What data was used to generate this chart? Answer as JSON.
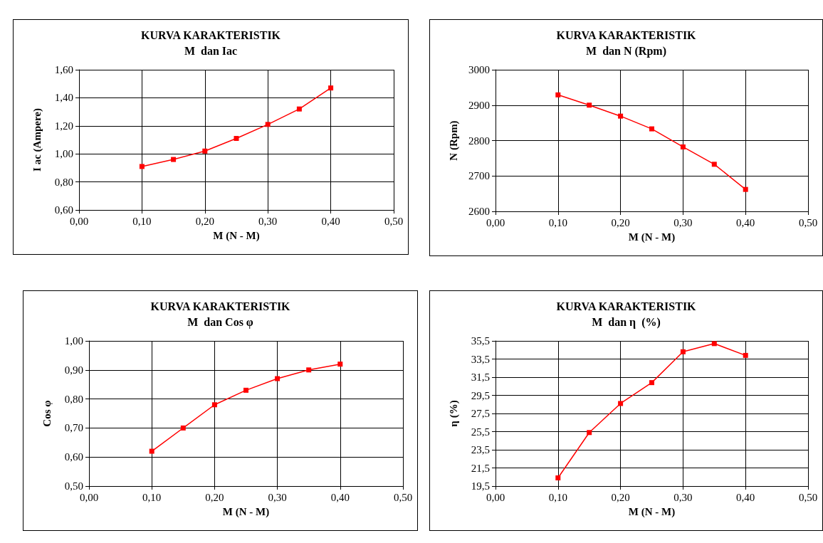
{
  "chart_data": [
    {
      "type": "line",
      "title": "KURVA KARAKTERISTIK",
      "subtitle": "M  dan Iac",
      "xlabel": "M (N - M)",
      "ylabel": "I ac (Ampere)",
      "x": [
        0.1,
        0.15,
        0.2,
        0.25,
        0.3,
        0.35,
        0.4
      ],
      "series": [
        {
          "color": "#ff0000",
          "values": [
            0.91,
            0.96,
            1.02,
            1.11,
            1.21,
            1.32,
            1.47
          ]
        }
      ],
      "xlim": [
        0,
        0.5
      ],
      "xticks": [
        {
          "value": 0,
          "label": "0,00"
        },
        {
          "value": 0.1,
          "label": "0,10"
        },
        {
          "value": 0.2,
          "label": "0,20"
        },
        {
          "value": 0.3,
          "label": "0,30"
        },
        {
          "value": 0.4,
          "label": "0,40"
        },
        {
          "value": 0.5,
          "label": "0,50"
        }
      ],
      "ylim": [
        0.6,
        1.6
      ],
      "yticks": [
        {
          "value": 0.6,
          "label": "0,60"
        },
        {
          "value": 0.8,
          "label": "0,80"
        },
        {
          "value": 1.0,
          "label": "1,00"
        },
        {
          "value": 1.2,
          "label": "1,20"
        },
        {
          "value": 1.4,
          "label": "1,40"
        },
        {
          "value": 1.6,
          "label": "1,60"
        }
      ],
      "grid": true,
      "marker": "square",
      "line_style": "solid"
    },
    {
      "type": "line",
      "title": "KURVA KARAKTERISTIK",
      "subtitle": "M  dan N (Rpm)",
      "xlabel": "M (N - M)",
      "ylabel": "N (Rpm)",
      "x": [
        0.1,
        0.15,
        0.2,
        0.25,
        0.3,
        0.35,
        0.4
      ],
      "series": [
        {
          "color": "#ff0000",
          "values": [
            2929,
            2900,
            2869,
            2833,
            2782,
            2733,
            2662
          ]
        }
      ],
      "xlim": [
        0,
        0.5
      ],
      "xticks": [
        {
          "value": 0,
          "label": "0,00"
        },
        {
          "value": 0.1,
          "label": "0,10"
        },
        {
          "value": 0.2,
          "label": "0,20"
        },
        {
          "value": 0.3,
          "label": "0,30"
        },
        {
          "value": 0.4,
          "label": "0,40"
        },
        {
          "value": 0.5,
          "label": "0,50"
        }
      ],
      "ylim": [
        2600,
        3000
      ],
      "yticks": [
        2600,
        2700,
        2800,
        2900,
        3000
      ],
      "grid": true,
      "marker": "square",
      "line_style": "solid"
    },
    {
      "type": "line",
      "title": "KURVA KARAKTERISTIK",
      "subtitle": "M  dan Cos φ",
      "xlabel": "M (N - M)",
      "ylabel": "Cos φ",
      "x": [
        0.1,
        0.15,
        0.2,
        0.25,
        0.3,
        0.35,
        0.4
      ],
      "series": [
        {
          "color": "#ff0000",
          "values": [
            0.62,
            0.7,
            0.78,
            0.83,
            0.87,
            0.9,
            0.92
          ]
        }
      ],
      "xlim": [
        0,
        0.5
      ],
      "xticks": [
        {
          "value": 0,
          "label": "0,00"
        },
        {
          "value": 0.1,
          "label": "0,10"
        },
        {
          "value": 0.2,
          "label": "0,20"
        },
        {
          "value": 0.3,
          "label": "0,30"
        },
        {
          "value": 0.4,
          "label": "0,40"
        },
        {
          "value": 0.5,
          "label": "0,50"
        }
      ],
      "ylim": [
        0.5,
        1.0
      ],
      "yticks": [
        {
          "value": 0.5,
          "label": "0,50"
        },
        {
          "value": 0.6,
          "label": "0,60"
        },
        {
          "value": 0.7,
          "label": "0,70"
        },
        {
          "value": 0.8,
          "label": "0,80"
        },
        {
          "value": 0.9,
          "label": "0,90"
        },
        {
          "value": 1.0,
          "label": "1,00"
        }
      ],
      "grid": true,
      "marker": "square",
      "line_style": "solid"
    },
    {
      "type": "line",
      "title": "KURVA KARAKTERISTIK",
      "subtitle": "M  dan η  (%)",
      "xlabel": "M (N - M)",
      "ylabel": "η (%)",
      "x": [
        0.1,
        0.15,
        0.2,
        0.25,
        0.3,
        0.35,
        0.4
      ],
      "series": [
        {
          "color": "#ff0000",
          "values": [
            20.4,
            25.4,
            28.6,
            30.9,
            34.3,
            35.2,
            33.9
          ]
        }
      ],
      "xlim": [
        0,
        0.5
      ],
      "xticks": [
        {
          "value": 0,
          "label": "0,00"
        },
        {
          "value": 0.1,
          "label": "0,10"
        },
        {
          "value": 0.2,
          "label": "0,20"
        },
        {
          "value": 0.3,
          "label": "0,30"
        },
        {
          "value": 0.4,
          "label": "0,40"
        },
        {
          "value": 0.5,
          "label": "0,50"
        }
      ],
      "ylim": [
        19.5,
        35.5
      ],
      "yticks": [
        {
          "value": 19.5,
          "label": "19,5"
        },
        {
          "value": 21.5,
          "label": "21,5"
        },
        {
          "value": 23.5,
          "label": "23,5"
        },
        {
          "value": 25.5,
          "label": "25,5"
        },
        {
          "value": 27.5,
          "label": "27,5"
        },
        {
          "value": 29.5,
          "label": "29,5"
        },
        {
          "value": 31.5,
          "label": "31,5"
        },
        {
          "value": 33.5,
          "label": "33,5"
        },
        {
          "value": 35.5,
          "label": "35,5"
        }
      ],
      "grid": true,
      "marker": "square",
      "line_style": "solid"
    }
  ]
}
